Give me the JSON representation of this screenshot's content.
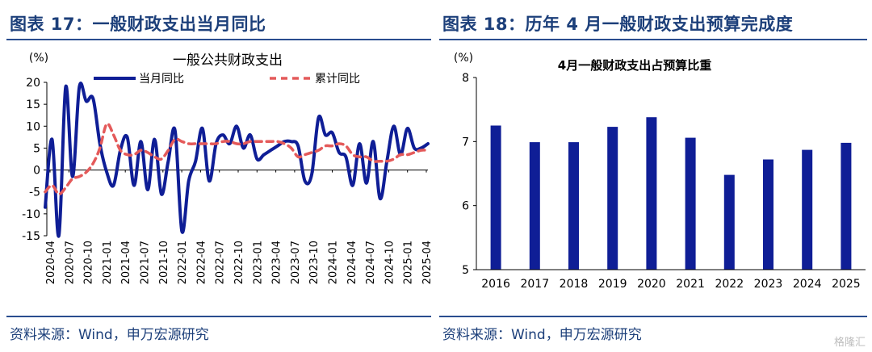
{
  "left": {
    "fig_title": "图表 17：一般财政支出当月同比",
    "source": "资料来源：Wind，申万宏源研究"
  },
  "right": {
    "fig_title": "图表 18：历年 4 月一般财政支出预算完成度",
    "source": "资料来源：Wind，申万宏源研究"
  },
  "watermark": "格隆汇",
  "colors": {
    "navy": "#0f1e96",
    "red": "#e45a5a",
    "title": "#1c3f7a"
  },
  "chart_data": [
    {
      "type": "line",
      "title": "一般公共财政支出",
      "ylabel": "(%)",
      "ylim": [
        -15,
        20
      ],
      "yticks": [
        -15,
        -10,
        -5,
        0,
        5,
        10,
        15,
        20
      ],
      "xtick_labels": [
        "2020-04",
        "2020-07",
        "2020-10",
        "2021-01",
        "2021-04",
        "2021-07",
        "2021-10",
        "2022-01",
        "2022-04",
        "2022-07",
        "2022-10",
        "2023-01",
        "2023-04",
        "2023-07",
        "2023-10",
        "2024-01",
        "2024-04",
        "2024-07",
        "2024-10",
        "2025-01",
        "2025-04"
      ],
      "legend_position": "top",
      "series": [
        {
          "name": "当月同比",
          "color": "#0f1e96",
          "style": "solid",
          "values": [
            -8.5,
            7.0,
            -15.0,
            19.0,
            -1.5,
            19.0,
            15.7,
            16.3,
            6.0,
            -0.5,
            -3.5,
            4.5,
            7.5,
            -3.5,
            6.5,
            -4.5,
            7.0,
            -5.5,
            2.0,
            9.0,
            -14.0,
            -2.5,
            2.0,
            9.5,
            -2.5,
            6.0,
            8.0,
            6.0,
            10.0,
            5.0,
            8.0,
            2.5,
            3.5,
            4.5,
            5.5,
            6.5,
            6.5,
            5.5,
            -2.5,
            -1.0,
            12.0,
            8.0,
            8.5,
            4.0,
            3.0,
            -3.5,
            6.0,
            -3.0,
            6.5,
            -6.5,
            2.0,
            10.0,
            3.5,
            9.5,
            5.0,
            5.0,
            6.0
          ]
        },
        {
          "name": "累计同比",
          "color": "#e45a5a",
          "style": "dashed",
          "values": [
            -5.0,
            -3.5,
            -5.5,
            -4.0,
            -2.0,
            -1.5,
            -0.5,
            1.5,
            5.0,
            10.5,
            8.0,
            4.5,
            3.5,
            3.5,
            4.5,
            4.0,
            3.0,
            2.5,
            4.5,
            7.0,
            6.5,
            6.0,
            6.0,
            6.0,
            6.0,
            6.0,
            6.5,
            6.5,
            6.0,
            6.0,
            6.5,
            6.5,
            6.5,
            6.5,
            6.5,
            6.0,
            5.0,
            3.0,
            3.5,
            4.0,
            4.5,
            5.5,
            5.5,
            6.0,
            5.5,
            3.5,
            3.0,
            3.0,
            2.0,
            2.0,
            2.0,
            2.5,
            3.5,
            3.5,
            4.0,
            4.5,
            4.5
          ]
        }
      ]
    },
    {
      "type": "bar",
      "title": "4月一般财政支出占预算比重",
      "ylabel": "(%)",
      "ylim": [
        5,
        8
      ],
      "yticks": [
        5,
        6,
        7,
        8
      ],
      "categories": [
        "2016",
        "2017",
        "2018",
        "2019",
        "2020",
        "2021",
        "2022",
        "2023",
        "2024",
        "2025"
      ],
      "values": [
        7.25,
        6.99,
        6.99,
        7.23,
        7.38,
        7.06,
        6.48,
        6.72,
        6.87,
        6.98
      ],
      "color": "#0f1e96"
    }
  ]
}
